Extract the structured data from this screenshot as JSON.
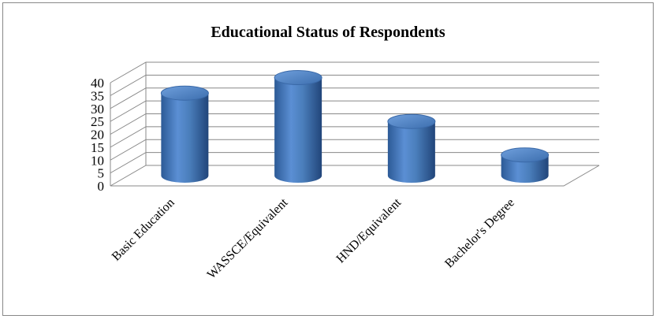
{
  "chart_data": {
    "type": "bar",
    "title": "Educational Status of Respondents",
    "categories": [
      "Basic Education",
      "WASSCE/Equivalent",
      "HND/Equivalent",
      "Bachelor's Degree"
    ],
    "values": [
      32,
      38,
      21,
      8
    ],
    "color": "#4a7ebb",
    "ylim": [
      0,
      40
    ],
    "yticks": [
      0,
      5,
      10,
      15,
      20,
      25,
      30,
      35,
      40
    ],
    "grid": true
  }
}
